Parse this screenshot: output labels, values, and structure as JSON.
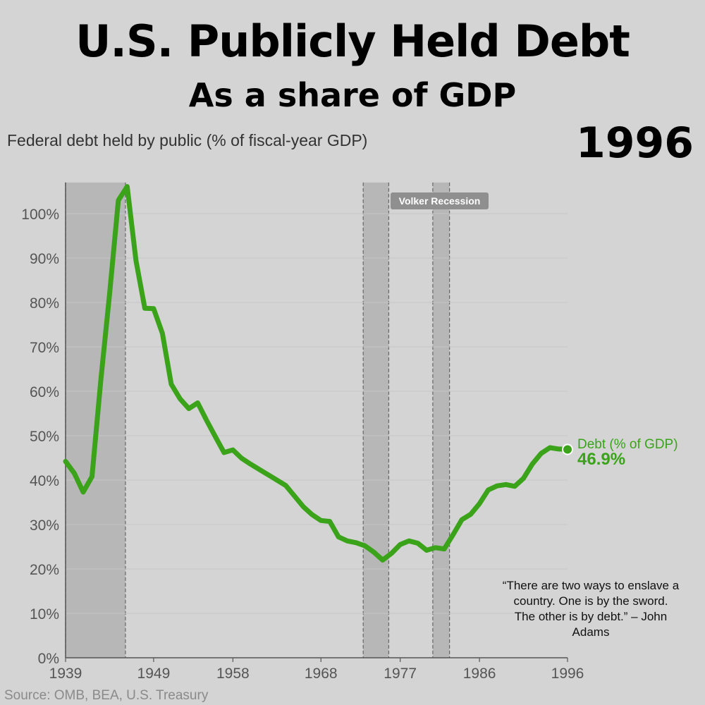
{
  "header": {
    "title": "U.S. Publicly Held Debt",
    "subtitle": "As a share of GDP",
    "axis_caption": "Federal debt held by public (% of fiscal-year GDP)",
    "current_year": "1996"
  },
  "footer": {
    "source": "Source: OMB, BEA, U.S. Treasury",
    "quote": "“There are two ways to enslave a country. One is by the sword. The other is by debt.” – John Adams"
  },
  "colors": {
    "background": "#d4d4d4",
    "line": "#3aa31a",
    "recession_band": "#b7b7b7",
    "annotation_bg": "#8f8f8f"
  },
  "chart_data": {
    "type": "line",
    "title": "U.S. Publicly Held Debt",
    "subtitle": "As a share of GDP",
    "ylabel": "Federal debt held by public (% of fiscal-year GDP)",
    "xlim": [
      1939,
      1996
    ],
    "ylim": [
      0,
      107
    ],
    "y_ticks": [
      0,
      10,
      20,
      30,
      40,
      50,
      60,
      70,
      80,
      90,
      100
    ],
    "y_tick_labels": [
      "0%",
      "10%",
      "20%",
      "30%",
      "40%",
      "50%",
      "60%",
      "70%",
      "80%",
      "90%",
      "100%"
    ],
    "x_ticks": [
      1939,
      1949,
      1958,
      1968,
      1977,
      1986,
      1996
    ],
    "x_tick_labels": [
      "1939",
      "1949",
      "1958",
      "1968",
      "1977",
      "1986",
      "1996"
    ],
    "grid": true,
    "series": [
      {
        "name": "Debt (% of GDP)",
        "x": [
          1939,
          1940,
          1941,
          1942,
          1943,
          1944,
          1945,
          1946,
          1947,
          1948,
          1949,
          1950,
          1951,
          1952,
          1953,
          1954,
          1955,
          1956,
          1957,
          1958,
          1959,
          1960,
          1961,
          1962,
          1963,
          1964,
          1965,
          1966,
          1967,
          1968,
          1969,
          1970,
          1971,
          1972,
          1973,
          1974,
          1975,
          1976,
          1977,
          1978,
          1979,
          1980,
          1981,
          1982,
          1983,
          1984,
          1985,
          1986,
          1987,
          1988,
          1989,
          1990,
          1991,
          1992,
          1993,
          1994,
          1995,
          1996
        ],
        "y": [
          44.2,
          41.5,
          37.3,
          40.8,
          62.5,
          82.0,
          103.0,
          106.1,
          89.4,
          78.7,
          78.6,
          73.0,
          61.6,
          58.3,
          56.1,
          57.4,
          53.5,
          49.8,
          46.2,
          46.8,
          44.9,
          43.6,
          42.4,
          41.2,
          40.0,
          38.8,
          36.4,
          34.0,
          32.2,
          30.9,
          30.7,
          27.2,
          26.3,
          25.9,
          25.2,
          23.8,
          22.0,
          23.5,
          25.5,
          26.3,
          25.8,
          24.2,
          24.8,
          24.5,
          27.7,
          31.1,
          32.3,
          34.7,
          37.8,
          38.7,
          39.0,
          38.6,
          40.4,
          43.6,
          46.0,
          47.3,
          47.0,
          46.9
        ]
      }
    ],
    "end_label": "Debt (% of GDP)",
    "end_value_label": "46.9%",
    "recession_bands": [
      [
        1939,
        1945.8
      ],
      [
        1972.8,
        1975.7
      ],
      [
        1980.7,
        1982.6
      ]
    ],
    "annotation": "Volker Recession"
  }
}
